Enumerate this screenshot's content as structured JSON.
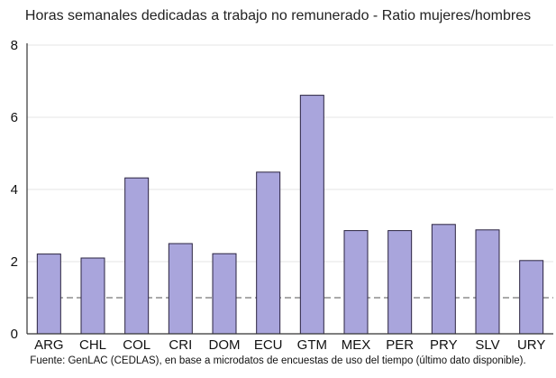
{
  "colors": {
    "bar_fill": "#a9a5dc",
    "bar_stroke": "#2a2340",
    "gridline": "#e6e6e6",
    "axis": "#333333",
    "reference_line": "#777777"
  },
  "chart_data": {
    "type": "bar",
    "title": "Horas semanales dedicadas a trabajo no remunerado - Ratio mujeres/hombres",
    "source": "Fuente: GenLAC (CEDLAS), en base a microdatos de encuestas de uso del tiempo (último dato disponible).",
    "categories": [
      "ARG",
      "CHL",
      "COL",
      "CRI",
      "DOM",
      "ECU",
      "GTM",
      "MEX",
      "PER",
      "PRY",
      "SLV",
      "URY"
    ],
    "values": [
      2.21,
      2.1,
      4.32,
      2.5,
      2.22,
      4.48,
      6.61,
      2.86,
      2.86,
      3.03,
      2.88,
      2.03
    ],
    "ylim": [
      0,
      8
    ],
    "yticks": [
      0,
      2,
      4,
      6,
      8
    ],
    "reference_line": 1,
    "reference_line_style": "dashed",
    "grid": "horizontal",
    "xlabel": "",
    "ylabel": ""
  }
}
